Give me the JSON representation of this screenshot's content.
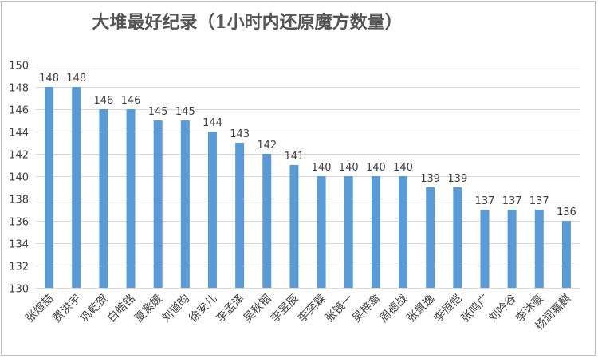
{
  "chart_data": {
    "type": "bar",
    "title": "大堆最好纪录（1小时内还原魔方数量）",
    "xlabel": "",
    "ylabel": "",
    "ylim": [
      130,
      150
    ],
    "yticks": [
      130,
      132,
      134,
      136,
      138,
      140,
      142,
      144,
      146,
      148,
      150
    ],
    "categories": [
      "张煊喆",
      "费洪宇",
      "巩乾贺",
      "白皓铭",
      "夏紫媛",
      "刘道昀",
      "徐安儿",
      "李孟泽",
      "吴秋铟",
      "李昱辰",
      "李奕霖",
      "张镜一",
      "吴梓翕",
      "周德战",
      "张景逸",
      "李恒恺",
      "张鸣广",
      "刘吟谷",
      "李沐豪",
      "杨润嘉麒"
    ],
    "values": [
      148,
      148,
      146,
      146,
      145,
      145,
      144,
      143,
      142,
      141,
      140,
      140,
      140,
      140,
      139,
      139,
      137,
      137,
      137,
      136
    ],
    "grid": true,
    "legend": "none",
    "bar_color": "#5b9bd5",
    "grid_color": "#d9d9d9",
    "text_color": "#404040"
  }
}
